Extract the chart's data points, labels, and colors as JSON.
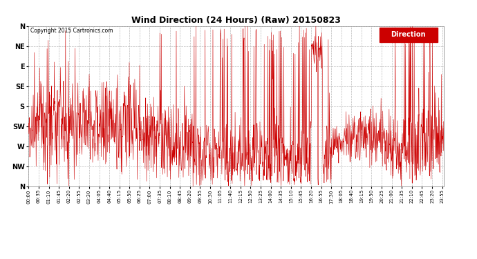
{
  "title": "Wind Direction (24 Hours) (Raw) 20150823",
  "copyright": "Copyright 2015 Cartronics.com",
  "legend_label": "Direction",
  "legend_bg": "#cc0000",
  "legend_text_color": "#ffffff",
  "line_color": "#cc0000",
  "background_color": "#ffffff",
  "grid_color": "#bbbbbb",
  "ytick_labels": [
    "N",
    "NW",
    "W",
    "SW",
    "S",
    "SE",
    "E",
    "NE",
    "N"
  ],
  "ytick_values": [
    360,
    315,
    270,
    225,
    180,
    135,
    90,
    45,
    0
  ],
  "ylim": [
    0,
    360
  ],
  "xtick_labels": [
    "00:00",
    "00:35",
    "01:10",
    "01:45",
    "02:20",
    "02:55",
    "03:30",
    "04:05",
    "04:40",
    "05:15",
    "05:50",
    "06:25",
    "07:00",
    "07:35",
    "08:10",
    "08:45",
    "09:20",
    "09:55",
    "10:30",
    "11:05",
    "11:40",
    "12:15",
    "12:50",
    "13:25",
    "14:00",
    "14:35",
    "15:10",
    "15:45",
    "16:20",
    "16:55",
    "17:30",
    "18:05",
    "18:40",
    "19:15",
    "19:50",
    "20:25",
    "21:00",
    "21:35",
    "22:10",
    "22:45",
    "23:20",
    "23:55"
  ]
}
